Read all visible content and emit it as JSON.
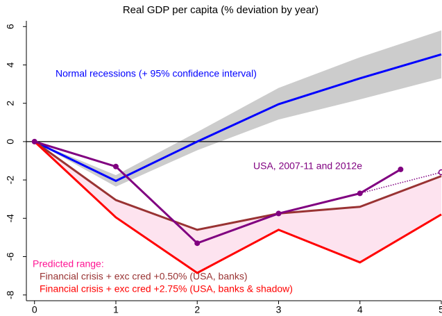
{
  "chart_data": {
    "type": "line",
    "title": "Real GDP per capita (% deviation by year)",
    "x": [
      0,
      1,
      2,
      3,
      4,
      5
    ],
    "xlim": [
      -0.1,
      5
    ],
    "xticks": [
      0,
      1,
      2,
      3,
      4,
      5
    ],
    "ylim": [
      -8.3,
      6.3
    ],
    "yticks": [
      -8,
      -6,
      -4,
      -2,
      0,
      2,
      4,
      6
    ],
    "reference_line": 0,
    "band": {
      "color": "#cccccc",
      "lower": [
        0,
        -2.35,
        -0.45,
        1.15,
        2.2,
        3.3
      ],
      "upper": [
        0,
        -1.75,
        0.5,
        2.8,
        4.4,
        5.8
      ]
    },
    "fill_between": [
      1,
      2
    ],
    "fill_color": "#fde3ef",
    "series": [
      {
        "color": "#0000ff",
        "values": [
          0,
          -2.05,
          0,
          1.95,
          3.3,
          4.55
        ]
      },
      {
        "color": "#993333",
        "values": [
          0,
          -3.05,
          -4.6,
          -3.75,
          -3.4,
          -1.8
        ]
      },
      {
        "color": "#ff0000",
        "values": [
          0,
          -3.95,
          -6.85,
          -4.6,
          -6.3,
          -3.8
        ]
      },
      {
        "color": "#800080",
        "x": [
          0,
          1,
          2,
          3,
          4,
          4.5
        ],
        "values": [
          0,
          -1.3,
          -5.3,
          -3.75,
          -2.7,
          -1.45
        ],
        "markers": true
      },
      {
        "color": "#800080",
        "x": [
          4,
          5
        ],
        "values": [
          -2.7,
          -1.6
        ],
        "dotted": true
      }
    ],
    "annotations": [
      {
        "text": "Normal recessions (+ 95% confidence interval)",
        "color": "#0000ff"
      },
      {
        "text": "USA, 2007-11 and 2012e",
        "color": "#800080"
      },
      {
        "text": "Predicted range:",
        "color": "#ff1493"
      },
      {
        "text": "Financial crisis + exc cred +0.50% (USA, banks)",
        "color": "#993333"
      },
      {
        "text": "Financial crisis + exc cred +2.75% (USA, banks & shadow)",
        "color": "#ff0000"
      }
    ]
  }
}
